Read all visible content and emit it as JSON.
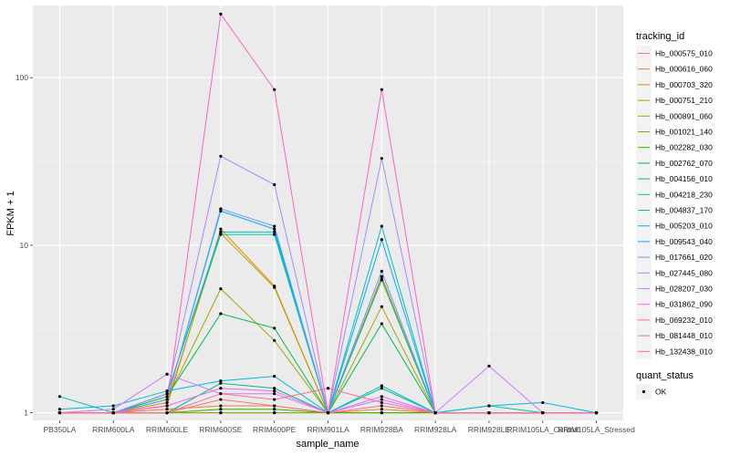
{
  "chart_data": {
    "type": "line",
    "xlabel": "sample_name",
    "ylabel": "FPKM + 1",
    "y_scale": "log10",
    "ylim": [
      0.9,
      270
    ],
    "y_ticks": [
      {
        "value": 1,
        "label": "1"
      },
      {
        "value": 10,
        "label": "10"
      },
      {
        "value": 100,
        "label": "100"
      }
    ],
    "categories": [
      "PB350LA",
      "RRIM600LA",
      "RRIM600LE",
      "RRIM600SE",
      "RRIM600PE",
      "RRIM901LA",
      "RRIM928BA",
      "RRIM928LA",
      "RRIM928LE",
      "RRIM105LA_Control",
      "RRIM105LA_Stressed"
    ],
    "grid": true,
    "legend_position": "right",
    "legend_title": "tracking_id",
    "shape_legend": {
      "title": "quant_status",
      "items": [
        "OK"
      ]
    },
    "series": [
      {
        "name": "Hb_000575_010",
        "color": "#F8766D",
        "values": [
          1.0,
          1.0,
          1.0,
          1.0,
          1.0,
          1.0,
          1.0,
          1.0,
          1.0,
          1.0,
          1.0
        ]
      },
      {
        "name": "Hb_000616_060",
        "color": "#EA8331",
        "values": [
          1.0,
          1.0,
          1.05,
          1.1,
          1.1,
          1.0,
          1.05,
          1.0,
          1.0,
          1.0,
          1.0
        ]
      },
      {
        "name": "Hb_000703_320",
        "color": "#D89000",
        "values": [
          1.0,
          1.0,
          1.15,
          11.8,
          5.6,
          1.0,
          6.5,
          1.0,
          1.0,
          1.0,
          1.0
        ]
      },
      {
        "name": "Hb_000751_210",
        "color": "#C09B00",
        "values": [
          1.0,
          1.0,
          1.1,
          12.5,
          5.7,
          1.0,
          6.2,
          1.0,
          1.0,
          1.0,
          1.0
        ]
      },
      {
        "name": "Hb_000891_060",
        "color": "#A3A500",
        "values": [
          1.0,
          1.0,
          1.2,
          5.5,
          2.7,
          1.0,
          4.3,
          1.0,
          1.0,
          1.0,
          1.0
        ]
      },
      {
        "name": "Hb_001021_140",
        "color": "#7CAE00",
        "values": [
          1.0,
          1.0,
          1.0,
          1.0,
          1.0,
          1.0,
          1.0,
          1.0,
          1.0,
          1.0,
          1.0
        ]
      },
      {
        "name": "Hb_002282_030",
        "color": "#39B600",
        "values": [
          1.0,
          1.0,
          1.0,
          1.05,
          1.05,
          1.0,
          1.0,
          1.0,
          1.0,
          1.0,
          1.0
        ]
      },
      {
        "name": "Hb_002762_070",
        "color": "#00BB4E",
        "values": [
          1.0,
          1.0,
          1.25,
          3.9,
          3.2,
          1.0,
          3.4,
          1.0,
          1.0,
          1.0,
          1.0
        ]
      },
      {
        "name": "Hb_004156_010",
        "color": "#00BF7D",
        "values": [
          1.0,
          1.0,
          1.0,
          1.5,
          1.4,
          1.0,
          1.4,
          1.0,
          1.0,
          1.0,
          1.0
        ]
      },
      {
        "name": "Hb_004218_230",
        "color": "#00C1A3",
        "values": [
          1.25,
          1.0,
          1.3,
          11.6,
          11.6,
          1.0,
          6.3,
          1.0,
          1.1,
          1.0,
          1.0
        ]
      },
      {
        "name": "Hb_004837_170",
        "color": "#00BFC4",
        "values": [
          1.0,
          1.0,
          1.3,
          12.0,
          12.0,
          1.0,
          13.0,
          1.0,
          1.0,
          1.0,
          1.0
        ]
      },
      {
        "name": "Hb_005203_010",
        "color": "#00B8E5",
        "values": [
          1.05,
          1.1,
          1.35,
          1.55,
          1.65,
          1.0,
          1.45,
          1.0,
          1.1,
          1.15,
          1.0
        ]
      },
      {
        "name": "Hb_009543_040",
        "color": "#00ABFD",
        "values": [
          1.0,
          1.0,
          1.2,
          16.0,
          12.5,
          1.0,
          10.8,
          1.0,
          1.0,
          1.0,
          1.0
        ]
      },
      {
        "name": "Hb_017661_020",
        "color": "#619CFF",
        "values": [
          1.0,
          1.0,
          1.2,
          16.5,
          13.0,
          1.0,
          7.0,
          1.0,
          1.0,
          1.0,
          1.0
        ]
      },
      {
        "name": "Hb_027445_080",
        "color": "#A58AFF",
        "values": [
          1.0,
          1.0,
          1.3,
          34.0,
          23.0,
          1.0,
          33.0,
          1.0,
          1.0,
          1.0,
          1.0
        ]
      },
      {
        "name": "Hb_028207_030",
        "color": "#D277FF",
        "values": [
          1.0,
          1.05,
          1.7,
          1.3,
          1.3,
          1.0,
          1.2,
          1.0,
          1.9,
          1.0,
          1.0
        ]
      },
      {
        "name": "Hb_031862_090",
        "color": "#EE66F8",
        "values": [
          1.0,
          1.0,
          1.1,
          1.4,
          1.35,
          1.0,
          1.25,
          1.0,
          1.0,
          1.0,
          1.0
        ]
      },
      {
        "name": "Hb_069232_010",
        "color": "#FF61C3",
        "values": [
          1.0,
          1.0,
          1.1,
          240.0,
          85.0,
          1.0,
          85.0,
          1.0,
          1.0,
          1.0,
          1.0
        ]
      },
      {
        "name": "Hb_081448_010",
        "color": "#FF6C92",
        "values": [
          1.0,
          1.0,
          1.0,
          1.3,
          1.2,
          1.4,
          1.15,
          1.0,
          1.0,
          1.0,
          1.0
        ]
      },
      {
        "name": "Hb_132438_010",
        "color": "#FC717F",
        "values": [
          1.0,
          1.0,
          1.0,
          1.2,
          1.1,
          1.0,
          1.1,
          1.0,
          1.0,
          1.0,
          1.0
        ]
      }
    ]
  }
}
